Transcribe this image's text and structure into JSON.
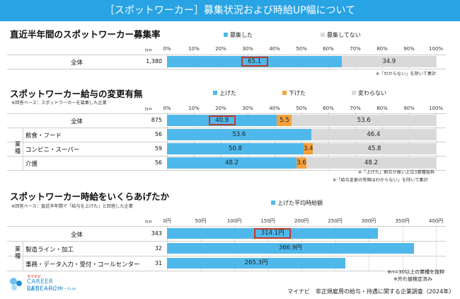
{
  "header": {
    "title": "［スポットワーカー］募集状況および時給UP幅について"
  },
  "colors": {
    "blue": "#4fb8eb",
    "gray": "#d9d9d9",
    "orange": "#f5a03b",
    "header": "#28a3e4",
    "highlight": "#c0392b"
  },
  "chart_data": [
    {
      "type": "bar",
      "orientation": "horizontal",
      "stacked": true,
      "title": "直近半年間のスポットワーカー募集率",
      "n_label": "n=",
      "xlim": [
        0,
        100
      ],
      "ticks": [
        "0%",
        "10%",
        "20%",
        "30%",
        "40%",
        "50%",
        "60%",
        "70%",
        "80%",
        "90%",
        "100%"
      ],
      "legend": [
        "募集した",
        "募集してない"
      ],
      "categories": [
        "全体"
      ],
      "n": [
        "1,380"
      ],
      "series": [
        {
          "name": "募集した",
          "values": [
            65.1
          ]
        },
        {
          "name": "募集してない",
          "values": [
            34.9
          ]
        }
      ],
      "note": "※「わからない」を除いて集計"
    },
    {
      "type": "bar",
      "orientation": "horizontal",
      "stacked": true,
      "title": "スポットワーカー給与の変更有無",
      "base_note": "※回答ベース：スポットワーカーを募集した企業",
      "n_label": "n=",
      "xlim": [
        0,
        100
      ],
      "ticks": [
        "0%",
        "10%",
        "20%",
        "30%",
        "40%",
        "50%",
        "60%",
        "70%",
        "80%",
        "90%",
        "100%"
      ],
      "legend": [
        "上げた",
        "下げた",
        "変わらない"
      ],
      "group_label": "業種",
      "categories": [
        "全体",
        "飲食・フード",
        "コンビニ・スーパー",
        "介護"
      ],
      "n": [
        "875",
        "56",
        "59",
        "56"
      ],
      "series": [
        {
          "name": "上げた",
          "values": [
            40.9,
            53.6,
            50.8,
            48.2
          ]
        },
        {
          "name": "下げた",
          "values": [
            5.5,
            null,
            3.4,
            3.6
          ]
        },
        {
          "name": "変わらない",
          "values": [
            53.6,
            46.4,
            45.8,
            48.2
          ]
        }
      ],
      "notes": [
        "※「上げた」割合が高い上位3業種抜粋",
        "※「給与変更の有無はわからない」を除いて集計"
      ]
    },
    {
      "type": "bar",
      "orientation": "horizontal",
      "title": "スポットワーカー時給をいくらあげたか",
      "base_note": "※回答ベース：直近半年間で「給与を上げた」と回答した企業",
      "n_label": "n=",
      "xlim": [
        0,
        400
      ],
      "ticks": [
        "0円",
        "50円",
        "100円",
        "150円",
        "200円",
        "250円",
        "300円",
        "350円",
        "400円"
      ],
      "legend": [
        "上げた平均時給額"
      ],
      "group_label": "業種",
      "categories": [
        "全体",
        "製造ライン・加工",
        "事務・データ入力・受付・コールセンター"
      ],
      "n": [
        "343",
        "32",
        "31"
      ],
      "values": [
        314.1,
        366.9,
        265.3
      ],
      "value_labels": [
        "314.1円",
        "366.9円",
        "265.3円"
      ],
      "notes": [
        "※n=30以上の業種を抜粋",
        "※外れ値検定済み"
      ]
    }
  ],
  "footer": {
    "logo_top": "マイナビ",
    "logo_line1": "CAREER RESEARCH",
    "logo_line2": "LAB",
    "logo_jp": "キャリアリサーチLab",
    "source": "マイナビ　非正規雇用の給与・待遇に関する企業調査（2024年）"
  }
}
